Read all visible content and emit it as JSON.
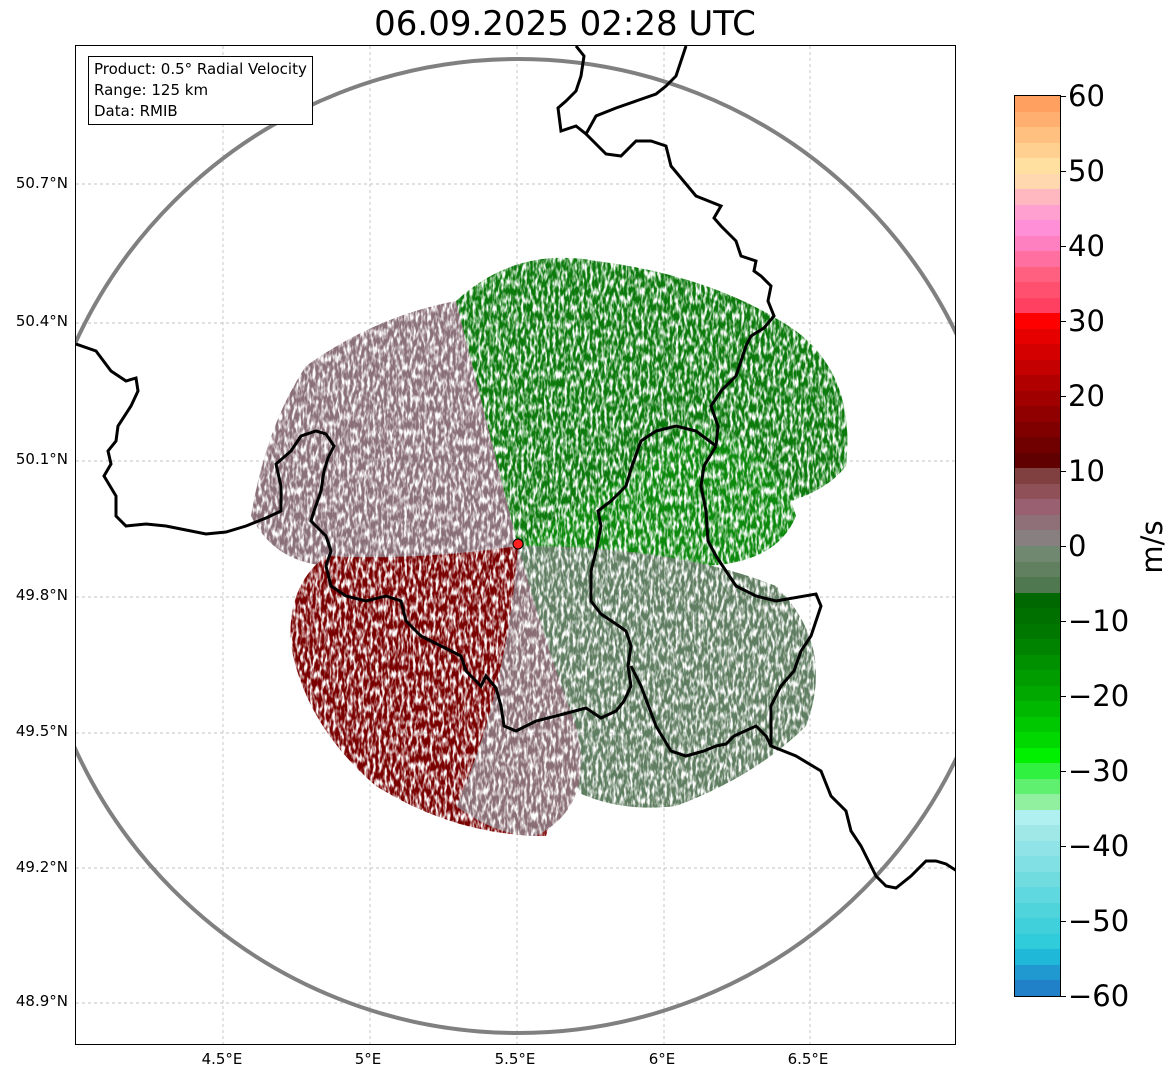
{
  "title": "06.09.2025 02:28 UTC",
  "info_box": {
    "product": "Product: 0.5° Radial Velocity",
    "range": "Range: 125 km",
    "data": "Data: RMIB"
  },
  "map": {
    "latitude_labels": [
      "50.7°N",
      "50.4°N",
      "50.1°N",
      "49.8°N",
      "49.5°N",
      "49.2°N",
      "48.9°N"
    ],
    "longitude_labels": [
      "4.5°E",
      "5°E",
      "5.5°E",
      "6°E",
      "6.5°E"
    ],
    "radar_site": {
      "lon": 5.5,
      "lat": 49.91
    },
    "range_ring_color": "#808080",
    "border_color": "#000000",
    "site_marker_color": "#ff2020"
  },
  "colorbar": {
    "unit": "m/s",
    "tick_labels": [
      "60",
      "50",
      "40",
      "30",
      "20",
      "10",
      "0",
      "−10",
      "−20",
      "−30",
      "−40",
      "−50",
      "−60"
    ],
    "range": [
      -60,
      60
    ],
    "colors_top_to_bottom": [
      "#ffa060",
      "#ffb070",
      "#ffc080",
      "#ffd090",
      "#ffe0a0",
      "#ffd8b0",
      "#ffb8c0",
      "#ffa0d0",
      "#ff90d8",
      "#ff80c0",
      "#ff70a0",
      "#ff6080",
      "#ff5070",
      "#ff4060",
      "#ff0000",
      "#e60000",
      "#d40000",
      "#c40000",
      "#b00000",
      "#a00000",
      "#900000",
      "#800000",
      "#700000",
      "#600000",
      "#804040",
      "#905058",
      "#986070",
      "#907078",
      "#888080",
      "#708870",
      "#608060",
      "#507850",
      "#006800",
      "#007000",
      "#007800",
      "#008400",
      "#009000",
      "#009c00",
      "#00a800",
      "#00b800",
      "#00c800",
      "#00d800",
      "#00f000",
      "#30f040",
      "#60f070",
      "#90f0a0",
      "#b0f0f0",
      "#a0e8e8",
      "#90e4e8",
      "#80e0e4",
      "#70dce0",
      "#60d8e0",
      "#50d4dc",
      "#40d0dc",
      "#30ccdc",
      "#20b8d8",
      "#2098d0",
      "#2080c8"
    ]
  }
}
